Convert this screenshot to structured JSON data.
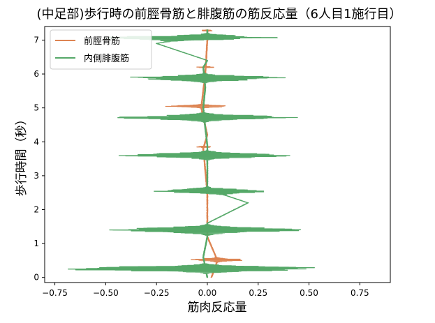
{
  "chart_data": {
    "type": "line",
    "title": "(中足部)歩行時の前脛骨筋と腓腹筋の筋反応量（6人目1施行目）",
    "xlabel": "筋肉反応量",
    "ylabel": "歩行時間（秒）",
    "xlim": [
      -0.8,
      0.9
    ],
    "ylim": [
      -0.15,
      7.4
    ],
    "xticks": [
      "−0.75",
      "−0.50",
      "−0.25",
      "0.00",
      "0.25",
      "0.50",
      "0.75"
    ],
    "xtick_values": [
      -0.75,
      -0.5,
      -0.25,
      0.0,
      0.25,
      0.5,
      0.75
    ],
    "yticks": [
      "0",
      "1",
      "2",
      "3",
      "4",
      "5",
      "6",
      "7"
    ],
    "ytick_values": [
      0,
      1,
      2,
      3,
      4,
      5,
      6,
      7
    ],
    "grid": false,
    "legend_position": "top-left",
    "series": [
      {
        "name": "前脛骨筋",
        "color": "#dd8452",
        "bursts": [
          {
            "t": 0.52,
            "amp": 0.15,
            "w": 0.05
          },
          {
            "t": 5.05,
            "amp": 0.2,
            "w": 0.04
          },
          {
            "t": 6.2,
            "amp": 0.05,
            "w": 0.02
          },
          {
            "t": 3.85,
            "amp": 0.05,
            "w": 0.02
          },
          {
            "t": 7.28,
            "amp": 0.04,
            "w": 0.02
          }
        ],
        "baseline": [
          [
            0.0,
            0.02
          ],
          [
            0.5,
            0.05
          ],
          [
            1.2,
            0.0
          ],
          [
            2.5,
            0.0
          ],
          [
            3.8,
            -0.02
          ],
          [
            4.2,
            0.0
          ],
          [
            5.0,
            -0.03
          ],
          [
            6.0,
            -0.01
          ],
          [
            7.0,
            0.0
          ],
          [
            7.3,
            0.0
          ]
        ]
      },
      {
        "name": "内側腓腹筋",
        "color": "#55a868",
        "bursts": [
          {
            "t": 0.26,
            "amp": 0.85,
            "w": 0.09
          },
          {
            "t": 1.4,
            "amp": 0.6,
            "w": 0.1
          },
          {
            "t": 2.55,
            "amp": 0.35,
            "w": 0.08
          },
          {
            "t": 3.6,
            "amp": 0.5,
            "w": 0.09
          },
          {
            "t": 4.72,
            "amp": 0.5,
            "w": 0.09
          },
          {
            "t": 5.88,
            "amp": 0.45,
            "w": 0.09
          },
          {
            "t": 7.07,
            "amp": 0.52,
            "w": 0.08
          }
        ],
        "baseline": [
          [
            0.0,
            0.0
          ],
          [
            0.6,
            -0.02
          ],
          [
            1.2,
            0.0
          ],
          [
            1.6,
            0.0
          ],
          [
            2.2,
            0.2
          ],
          [
            2.6,
            0.0
          ],
          [
            3.2,
            0.0
          ],
          [
            3.9,
            0.0
          ],
          [
            4.4,
            -0.01
          ],
          [
            5.0,
            -0.02
          ],
          [
            5.6,
            -0.01
          ],
          [
            6.2,
            -0.02
          ],
          [
            6.4,
            0.0
          ],
          [
            6.9,
            -0.25
          ],
          [
            7.15,
            0.0
          ],
          [
            7.3,
            0.0
          ]
        ]
      }
    ]
  }
}
